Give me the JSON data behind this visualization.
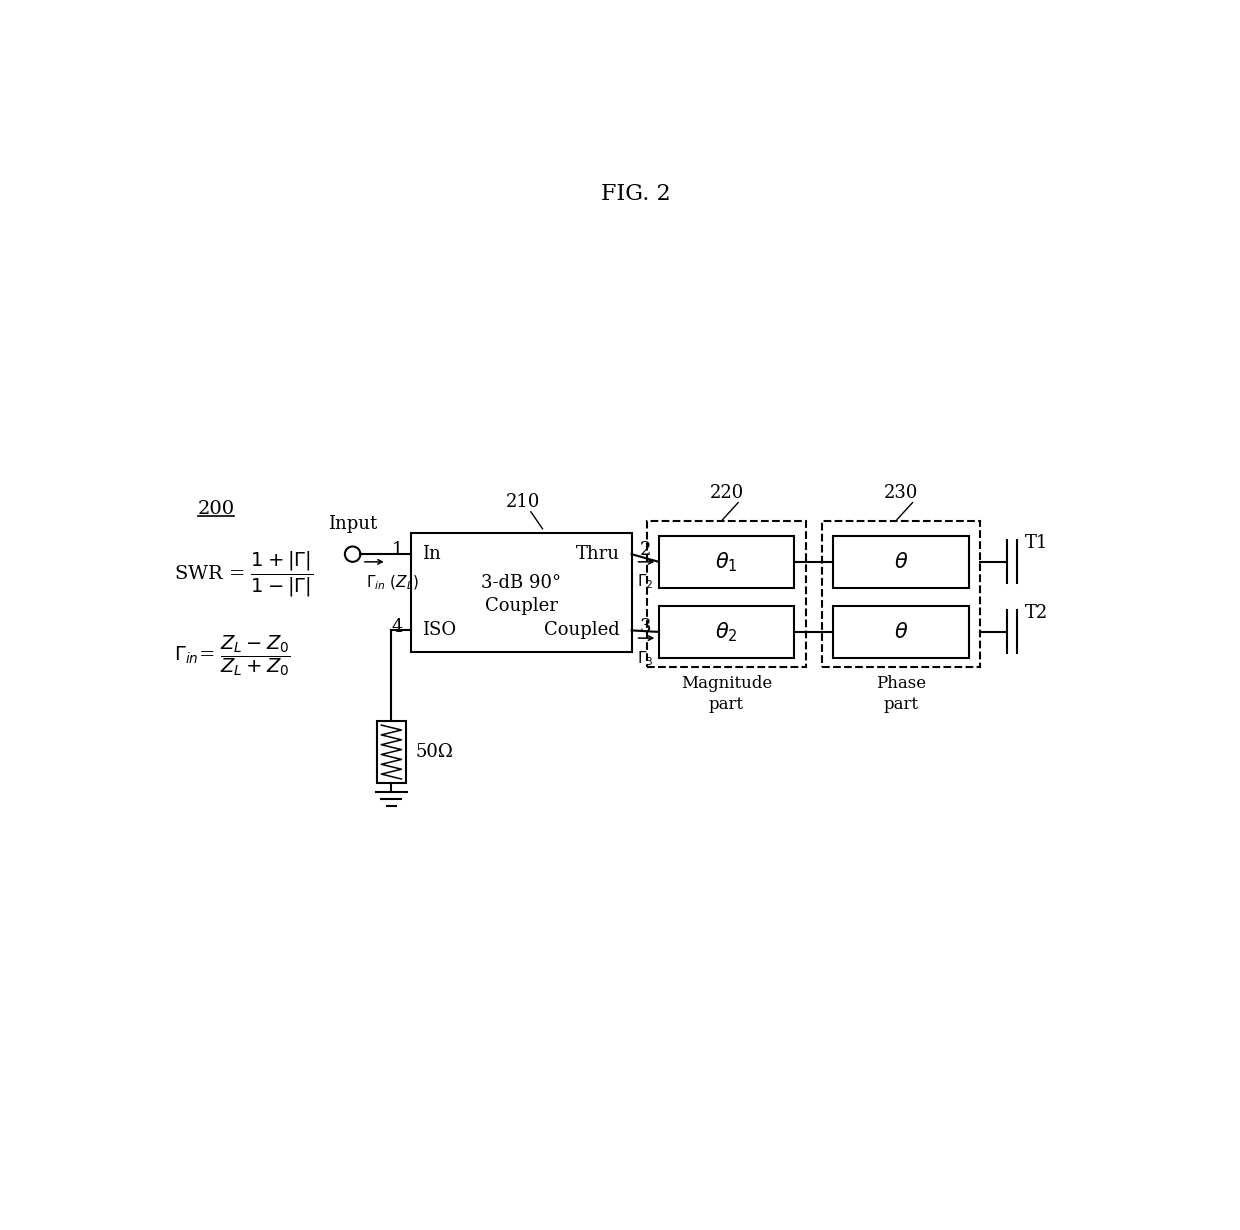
{
  "title": "FIG. 2",
  "bg_color": "#ffffff",
  "text_color": "#000000",
  "label_200": "200",
  "label_210": "210",
  "label_220": "220",
  "label_230": "230",
  "coupler_label_in": "In",
  "coupler_label_line2": "3-dB 90°",
  "coupler_label_line3": "Coupler",
  "coupler_label_thru": "Thru",
  "coupler_label_iso": "ISO",
  "coupler_label_coupled": "Coupled",
  "mag_label": "Magnitude\npart",
  "phase_label": "Phase\npart",
  "port_T1": "T1",
  "port_T2": "T2",
  "input_label": "Input",
  "resistor_label": "50Ω"
}
